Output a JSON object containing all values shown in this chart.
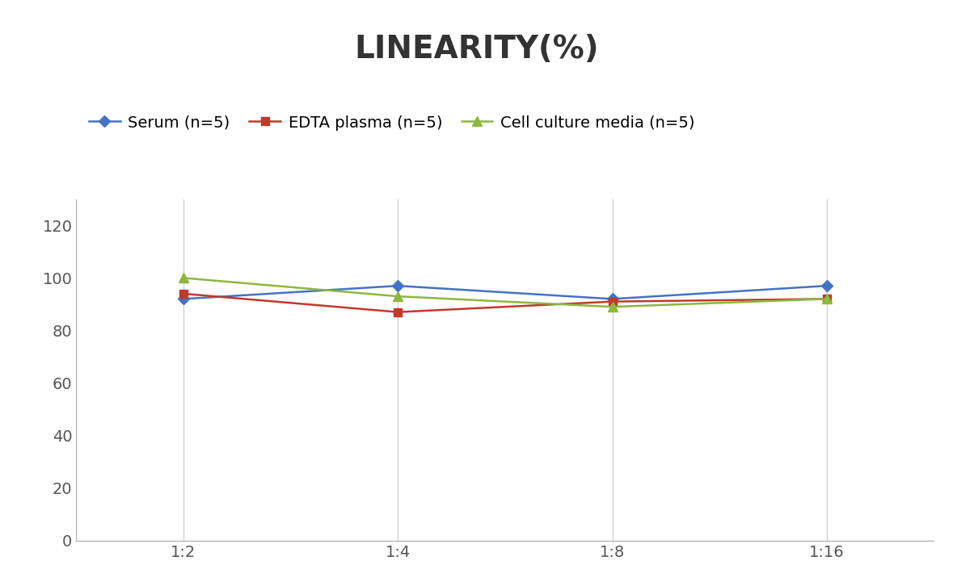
{
  "title": "LINEARITY(%)",
  "title_fontsize": 28,
  "title_fontweight": "bold",
  "x_labels": [
    "1:2",
    "1:4",
    "1:8",
    "1:16"
  ],
  "serum": {
    "label": "Serum (n=5)",
    "values": [
      92,
      97,
      92,
      97
    ],
    "color": "#4472C4",
    "marker": "D",
    "markersize": 7
  },
  "edta": {
    "label": "EDTA plasma (n=5)",
    "values": [
      94,
      87,
      91,
      92
    ],
    "color": "#C0392B",
    "marker": "s",
    "markersize": 7
  },
  "cell": {
    "label": "Cell culture media (n=5)",
    "values": [
      100,
      93,
      89,
      92
    ],
    "color": "#8DB73E",
    "marker": "^",
    "markersize": 8
  },
  "ylim": [
    0,
    130
  ],
  "yticks": [
    0,
    20,
    40,
    60,
    80,
    100,
    120
  ],
  "background_color": "#ffffff",
  "grid_color": "#d0d0d0",
  "linewidth": 1.8,
  "tick_fontsize": 14,
  "legend_fontsize": 14,
  "title_color": "#333333",
  "tick_color": "#555555"
}
